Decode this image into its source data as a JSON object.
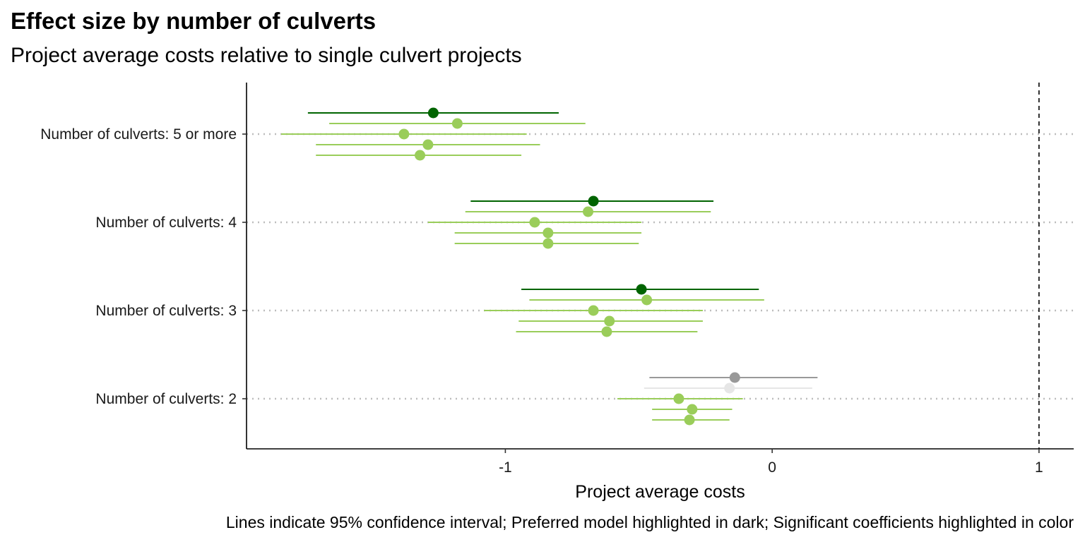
{
  "title": "Effect size by number of culverts",
  "subtitle": "Project average costs relative to single culvert projects",
  "caption": "Lines indicate 95% confidence interval; Preferred model highlighted in dark; Significant coefficients highlighted in color",
  "chart_data": {
    "type": "scatter",
    "subtype": "coefficient-plot-with-confidence-intervals",
    "title": "Effect size by number of culverts",
    "subtitle": "Project average costs relative to single culvert projects",
    "xlabel": "Project average costs",
    "ylabel": "",
    "xlim": [
      -1.97,
      1.13
    ],
    "x_ticks": [
      -1,
      0,
      1
    ],
    "x_tick_labels": [
      "-1",
      "0",
      "1"
    ],
    "reference_line_x": 1,
    "grid": "dotted horizontal lines at each category",
    "legend": "none",
    "categories": [
      "Number of culverts: 5 or more",
      "Number of culverts: 4",
      "Number of culverts: 3",
      "Number of culverts: 2"
    ],
    "colors": {
      "preferred_significant": "#006400",
      "significant": "#9ACD5A",
      "preferred_not_significant": "#999999",
      "not_significant": "#E6E6E6"
    },
    "estimates": [
      {
        "category": "Number of culverts: 5 or more",
        "model": 1,
        "estimate": -1.27,
        "ci_low": -1.74,
        "ci_high": -0.8,
        "preferred": true,
        "significant": true
      },
      {
        "category": "Number of culverts: 5 or more",
        "model": 2,
        "estimate": -1.18,
        "ci_low": -1.66,
        "ci_high": -0.7,
        "preferred": false,
        "significant": true
      },
      {
        "category": "Number of culverts: 5 or more",
        "model": 3,
        "estimate": -1.38,
        "ci_low": -1.84,
        "ci_high": -0.92,
        "preferred": false,
        "significant": true
      },
      {
        "category": "Number of culverts: 5 or more",
        "model": 4,
        "estimate": -1.29,
        "ci_low": -1.71,
        "ci_high": -0.87,
        "preferred": false,
        "significant": true
      },
      {
        "category": "Number of culverts: 5 or more",
        "model": 5,
        "estimate": -1.32,
        "ci_low": -1.71,
        "ci_high": -0.94,
        "preferred": false,
        "significant": true
      },
      {
        "category": "Number of culverts: 4",
        "model": 1,
        "estimate": -0.67,
        "ci_low": -1.13,
        "ci_high": -0.22,
        "preferred": true,
        "significant": true
      },
      {
        "category": "Number of culverts: 4",
        "model": 2,
        "estimate": -0.69,
        "ci_low": -1.15,
        "ci_high": -0.23,
        "preferred": false,
        "significant": true
      },
      {
        "category": "Number of culverts: 4",
        "model": 3,
        "estimate": -0.89,
        "ci_low": -1.29,
        "ci_high": -0.49,
        "preferred": false,
        "significant": true
      },
      {
        "category": "Number of culverts: 4",
        "model": 4,
        "estimate": -0.84,
        "ci_low": -1.19,
        "ci_high": -0.49,
        "preferred": false,
        "significant": true
      },
      {
        "category": "Number of culverts: 4",
        "model": 5,
        "estimate": -0.84,
        "ci_low": -1.19,
        "ci_high": -0.5,
        "preferred": false,
        "significant": true
      },
      {
        "category": "Number of culverts: 3",
        "model": 1,
        "estimate": -0.49,
        "ci_low": -0.94,
        "ci_high": -0.05,
        "preferred": true,
        "significant": true
      },
      {
        "category": "Number of culverts: 3",
        "model": 2,
        "estimate": -0.47,
        "ci_low": -0.91,
        "ci_high": -0.03,
        "preferred": false,
        "significant": true
      },
      {
        "category": "Number of culverts: 3",
        "model": 3,
        "estimate": -0.67,
        "ci_low": -1.08,
        "ci_high": -0.26,
        "preferred": false,
        "significant": true
      },
      {
        "category": "Number of culverts: 3",
        "model": 4,
        "estimate": -0.61,
        "ci_low": -0.95,
        "ci_high": -0.26,
        "preferred": false,
        "significant": true
      },
      {
        "category": "Number of culverts: 3",
        "model": 5,
        "estimate": -0.62,
        "ci_low": -0.96,
        "ci_high": -0.28,
        "preferred": false,
        "significant": true
      },
      {
        "category": "Number of culverts: 2",
        "model": 1,
        "estimate": -0.14,
        "ci_low": -0.46,
        "ci_high": 0.17,
        "preferred": true,
        "significant": false
      },
      {
        "category": "Number of culverts: 2",
        "model": 2,
        "estimate": -0.16,
        "ci_low": -0.48,
        "ci_high": 0.15,
        "preferred": false,
        "significant": false
      },
      {
        "category": "Number of culverts: 2",
        "model": 3,
        "estimate": -0.35,
        "ci_low": -0.58,
        "ci_high": -0.11,
        "preferred": false,
        "significant": true
      },
      {
        "category": "Number of culverts: 2",
        "model": 4,
        "estimate": -0.3,
        "ci_low": -0.45,
        "ci_high": -0.15,
        "preferred": false,
        "significant": true
      },
      {
        "category": "Number of culverts: 2",
        "model": 5,
        "estimate": -0.31,
        "ci_low": -0.45,
        "ci_high": -0.16,
        "preferred": false,
        "significant": true
      }
    ]
  }
}
